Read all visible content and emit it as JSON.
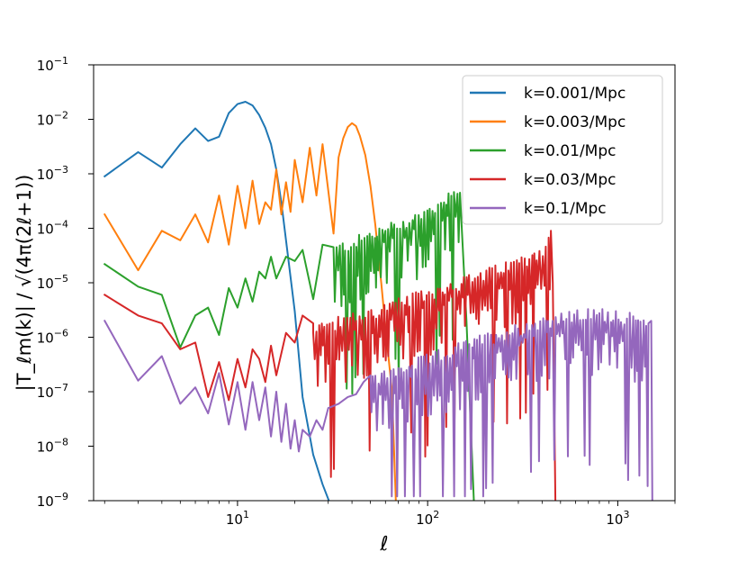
{
  "chart_data": {
    "type": "line",
    "xlabel": "ℓ",
    "ylabel": "|T_ℓm(k)| / √(4π(2ℓ+1))",
    "xscale": "log",
    "yscale": "log",
    "xlim": [
      1.75,
      2000
    ],
    "ylim": [
      1e-09,
      0.1
    ],
    "grid": false,
    "legend_position": "top-right",
    "x_ticks": [
      {
        "value": 10,
        "base": "10",
        "exp": "1"
      },
      {
        "value": 100,
        "base": "10",
        "exp": "2"
      },
      {
        "value": 1000,
        "base": "10",
        "exp": "3"
      }
    ],
    "y_ticks": [
      {
        "value": 0.1,
        "base": "10",
        "exp": "−1"
      },
      {
        "value": 0.01,
        "base": "10",
        "exp": "−2"
      },
      {
        "value": 0.001,
        "base": "10",
        "exp": "−3"
      },
      {
        "value": 0.0001,
        "base": "10",
        "exp": "−4"
      },
      {
        "value": 1e-05,
        "base": "10",
        "exp": "−5"
      },
      {
        "value": 1e-06,
        "base": "10",
        "exp": "−6"
      },
      {
        "value": 1e-07,
        "base": "10",
        "exp": "−7"
      },
      {
        "value": 1e-08,
        "base": "10",
        "exp": "−8"
      },
      {
        "value": 1e-09,
        "base": "10",
        "exp": "−9"
      }
    ],
    "series": [
      {
        "name": "k=0.001/Mpc",
        "color": "#1f77b4",
        "x": [
          2,
          3,
          4,
          5,
          6,
          7,
          8,
          9,
          10,
          11,
          12,
          13,
          14,
          15,
          16,
          17,
          18,
          20,
          22,
          25,
          28,
          31
        ],
        "y": [
          0.0009,
          0.0025,
          0.0013,
          0.0035,
          0.0068,
          0.004,
          0.0048,
          0.013,
          0.019,
          0.021,
          0.018,
          0.012,
          0.007,
          0.0035,
          0.0012,
          0.0003,
          6e-05,
          3e-06,
          8e-08,
          7e-09,
          2e-09,
          8e-10
        ],
        "envelope": null
      },
      {
        "name": "k=0.003/Mpc",
        "color": "#ff7f0e",
        "x": [
          2,
          3,
          4,
          5,
          6,
          7,
          8,
          9,
          10,
          11,
          12,
          13,
          14,
          15,
          16,
          17,
          18,
          19,
          20,
          22,
          24,
          26,
          28,
          30,
          32,
          34,
          36,
          38,
          40,
          42,
          44,
          47,
          50,
          53,
          57,
          60,
          65,
          68
        ],
        "y": [
          0.00018,
          1.7e-05,
          9e-05,
          6e-05,
          0.00018,
          5.5e-05,
          0.0004,
          5e-05,
          0.0006,
          0.0001,
          0.00075,
          0.00012,
          0.0003,
          0.00022,
          0.0012,
          0.00018,
          0.0007,
          0.0002,
          0.0018,
          0.0003,
          0.003,
          0.0004,
          0.0035,
          0.0005,
          8e-05,
          0.002,
          0.0045,
          0.0072,
          0.0085,
          0.0075,
          0.005,
          0.0022,
          0.0006,
          0.00012,
          1e-05,
          1.5e-06,
          1e-07,
          1e-09
        ],
        "envelope": null
      },
      {
        "name": "k=0.01/Mpc",
        "color": "#2ca02c",
        "x": [
          2,
          3,
          4,
          5,
          6,
          7,
          8,
          9,
          10,
          11,
          12,
          13,
          14,
          15,
          16,
          18,
          20,
          22,
          25,
          28,
          32
        ],
        "y": [
          2.2e-05,
          8.5e-06,
          6e-06,
          6.5e-07,
          2.5e-06,
          3.5e-06,
          1.1e-06,
          8e-06,
          3.5e-06,
          1.2e-05,
          4.5e-06,
          1.6e-05,
          1.2e-05,
          3e-05,
          1.2e-05,
          3e-05,
          2.5e-05,
          4e-05,
          5e-06,
          5e-05,
          4.5e-05
        ],
        "envelope": {
          "x": [
            32,
            60,
            100,
            130,
            140,
            148,
            160,
            175
          ],
          "y": [
            5e-05,
            0.00012,
            0.00025,
            0.0005,
            0.0009,
            0.00045,
            2e-06,
            1e-09
          ]
        }
      },
      {
        "name": "k=0.03/Mpc",
        "color": "#d62728",
        "x": [
          2,
          3,
          4,
          5,
          6,
          7,
          8,
          9,
          10,
          11,
          12,
          13,
          14,
          15,
          16,
          18,
          20,
          22,
          25
        ],
        "y": [
          6e-06,
          2.5e-06,
          1.8e-06,
          6e-07,
          8e-07,
          8e-08,
          3.5e-07,
          7e-08,
          4e-07,
          1.2e-07,
          6e-07,
          4e-07,
          1.5e-07,
          7e-07,
          2e-07,
          1.2e-06,
          8e-07,
          2.5e-06,
          1.8e-06
        ],
        "envelope": {
          "x": [
            25,
            50,
            100,
            200,
            300,
            400,
            430,
            445,
            455,
            470
          ],
          "y": [
            1.8e-06,
            3.5e-06,
            8e-06,
            1.8e-05,
            3e-05,
            5e-05,
            8e-05,
            9e-05,
            1e-05,
            1e-09
          ]
        }
      },
      {
        "name": "k=0.1/Mpc",
        "color": "#9467bd",
        "x": [
          2,
          3,
          4,
          5,
          6,
          7,
          8,
          9,
          10,
          11,
          12,
          13,
          14,
          15,
          16,
          17,
          18,
          19,
          20,
          21,
          22,
          24,
          26,
          28,
          30,
          34,
          38,
          42,
          46,
          50
        ],
        "y": [
          2e-06,
          1.6e-07,
          4.5e-07,
          6e-08,
          1.2e-07,
          4e-08,
          2.2e-07,
          2.5e-08,
          1.5e-07,
          2e-08,
          1.5e-07,
          3e-08,
          1.2e-07,
          1.5e-08,
          1e-07,
          1.2e-08,
          6e-08,
          9e-09,
          3e-08,
          8e-09,
          2e-08,
          1.5e-08,
          3e-08,
          2e-08,
          5e-08,
          6e-08,
          8e-08,
          9e-08,
          1.5e-07,
          2e-07
        ],
        "envelope": {
          "x": [
            50,
            100,
            200,
            400,
            700,
            1000,
            1300,
            1450,
            1500,
            1520
          ],
          "y": [
            2e-07,
            5e-07,
            1.2e-06,
            2.5e-06,
            3.4e-06,
            3.4e-06,
            2.5e-06,
            1.8e-06,
            2e-06,
            1e-09
          ]
        }
      }
    ]
  }
}
